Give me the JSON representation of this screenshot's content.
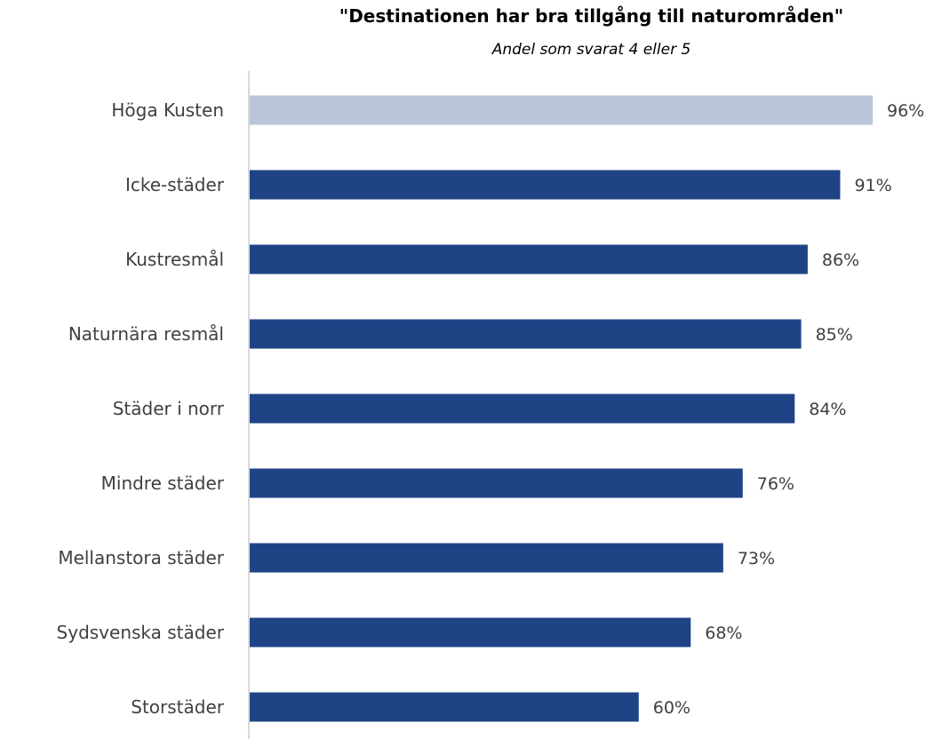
{
  "chart_data": {
    "type": "bar",
    "orientation": "horizontal",
    "title": "\"Destinationen har bra tillgång till naturområden\"",
    "subtitle": "Andel som svarat 4 eller 5",
    "categories": [
      "Höga Kusten",
      "Icke-städer",
      "Kustresmål",
      "Naturnära resmål",
      "Städer i norr",
      "Mindre städer",
      "Mellanstora städer",
      "Sydsvenska städer",
      "Storstäder"
    ],
    "values": [
      96,
      91,
      86,
      85,
      84,
      76,
      73,
      68,
      60
    ],
    "value_labels": [
      "96%",
      "91%",
      "86%",
      "85%",
      "84%",
      "76%",
      "73%",
      "68%",
      "60%"
    ],
    "highlight_index": 0,
    "xlim": [
      0,
      96
    ],
    "unit": "%",
    "grid": false,
    "legend": "none",
    "colors": {
      "highlight": "#B8C5DA",
      "bar": "#1F4486",
      "axis": "#D9D9D9",
      "label": "#404040"
    }
  }
}
